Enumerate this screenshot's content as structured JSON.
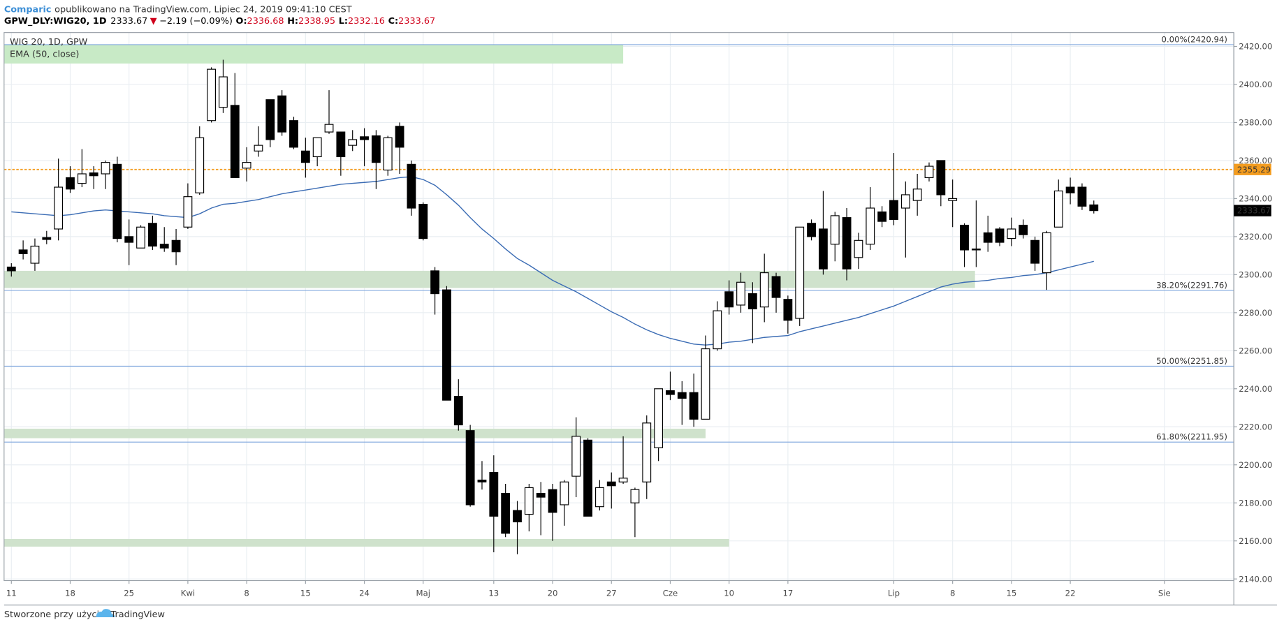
{
  "header": {
    "publisher": "Comparic",
    "published": "opublikowano na TradingView.com, Lipiec 24, 2019 09:41:10 CEST",
    "symbol": "GPW_DLY:WIG20, 1D",
    "arrow": "▼",
    "change": "−2.19 (−0.09%)",
    "o": "O:",
    "h": "H:",
    "l": "L:",
    "c": "C:"
  },
  "footer": {
    "text": "Stworzone przy użyciu",
    "brand": "TradingView"
  },
  "chart_data": {
    "type": "candlestick",
    "series": [
      {
        "name": "WIG 20, 1D, GPW",
        "up_color": "#ffffff",
        "down_color": "#000000",
        "x": [
          0,
          1,
          2,
          3,
          4,
          5,
          6,
          7,
          8,
          9,
          10,
          11,
          12,
          13,
          14,
          15,
          16,
          17,
          18,
          19,
          20,
          21,
          22,
          23,
          24,
          25,
          26,
          27,
          28,
          29,
          30,
          31,
          32,
          33,
          34,
          35,
          36,
          37,
          38,
          39,
          40,
          41,
          42,
          43,
          44,
          45,
          46,
          47,
          48,
          49,
          50,
          51,
          52,
          53,
          54,
          55,
          56,
          57,
          58,
          59,
          60,
          61,
          62,
          63,
          64,
          65,
          66,
          67,
          68,
          69,
          70,
          71,
          72,
          73,
          74,
          75,
          76,
          77,
          78,
          79,
          80,
          81,
          82,
          83,
          84,
          85,
          86,
          87,
          88,
          89,
          90,
          91,
          92
        ],
        "open": [
          2304,
          2313,
          2306,
          2319.5,
          2324,
          2351,
          2348,
          2353.5,
          2353,
          2358,
          2320,
          2314,
          2327,
          2316,
          2318,
          2325,
          2343,
          2381,
          2388,
          2389,
          2356,
          2365,
          2392,
          2394,
          2381,
          2365,
          2362,
          2375,
          2375,
          2368,
          2372.5,
          2373,
          2355,
          2378,
          2358,
          2337,
          2302,
          2292,
          2236,
          2218,
          2192,
          2196,
          2185,
          2176,
          2174,
          2185,
          2187,
          2179,
          2194,
          2213,
          2178,
          2191,
          2191,
          2180,
          2191,
          2209,
          2239,
          2238,
          2238,
          2224,
          2261,
          2291,
          2284,
          2290,
          2283,
          2299,
          2287,
          2277,
          2327,
          2324,
          2316,
          2330,
          2309,
          2316,
          2333,
          2339,
          2335,
          2339,
          2351,
          2360,
          2339,
          2326,
          2313.5,
          2322,
          2324,
          2319,
          2326,
          2318,
          2301,
          2325,
          2346,
          2346,
          2336.68
        ],
        "high": [
          2306,
          2318,
          2319,
          2323,
          2361,
          2357,
          2366,
          2357,
          2360,
          2362,
          2329,
          2326,
          2331,
          2325,
          2324,
          2348,
          2378,
          2409,
          2413,
          2406,
          2367,
          2378,
          2392,
          2397,
          2383,
          2372,
          2372,
          2397,
          2375,
          2376,
          2377,
          2376,
          2373,
          2380,
          2360,
          2338,
          2304,
          2294,
          2245,
          2221,
          2202,
          2205,
          2190,
          2181,
          2190,
          2191,
          2190,
          2192,
          2225,
          2214,
          2192,
          2196,
          2215,
          2188,
          2226,
          2240,
          2249,
          2244,
          2248,
          2268,
          2286,
          2297,
          2301,
          2296,
          2311,
          2301,
          2289,
          2325,
          2329,
          2344,
          2333,
          2335,
          2322,
          2346,
          2336,
          2364,
          2349,
          2353,
          2359,
          2360,
          2350,
          2327,
          2339,
          2331,
          2325,
          2330,
          2329,
          2320,
          2323,
          2350,
          2351,
          2348,
          2338.95
        ],
        "low": [
          2299,
          2308,
          2302,
          2316,
          2318,
          2343,
          2346,
          2345,
          2345,
          2317,
          2305,
          2314,
          2313,
          2312,
          2305,
          2324,
          2342,
          2380,
          2385,
          2351,
          2349,
          2362,
          2367,
          2373,
          2366,
          2351,
          2357,
          2374,
          2352,
          2365,
          2357,
          2345,
          2352,
          2353,
          2331,
          2318,
          2279,
          2234,
          2218,
          2178,
          2187,
          2154,
          2162,
          2153,
          2165,
          2163,
          2160,
          2168,
          2183,
          2173,
          2176,
          2177,
          2190,
          2162,
          2182,
          2202,
          2234,
          2221,
          2220,
          2224,
          2260,
          2279,
          2280,
          2264,
          2275,
          2280,
          2269,
          2273,
          2318,
          2300,
          2307,
          2297,
          2303,
          2313,
          2325,
          2326,
          2309,
          2331,
          2349,
          2336,
          2325,
          2304,
          2304,
          2312,
          2315,
          2315,
          2319,
          2302,
          2292,
          2325,
          2337,
          2334,
          2332.16
        ],
        "close": [
          2302,
          2311,
          2315,
          2318.5,
          2346,
          2345,
          2353,
          2352,
          2359,
          2319,
          2317,
          2325,
          2315,
          2314,
          2312,
          2341,
          2372,
          2408,
          2404,
          2351,
          2359,
          2368,
          2371,
          2375,
          2367,
          2359,
          2372,
          2379,
          2362,
          2371,
          2371,
          2359,
          2372,
          2367,
          2335,
          2319,
          2290,
          2234,
          2221,
          2179,
          2191,
          2173,
          2164,
          2170,
          2188,
          2183,
          2175,
          2191,
          2215,
          2173,
          2188,
          2189,
          2193,
          2187,
          2222,
          2240,
          2237,
          2235,
          2224,
          2261,
          2281,
          2283,
          2296,
          2282,
          2301,
          2288,
          2276,
          2325,
          2320,
          2303,
          2331,
          2303,
          2318,
          2335,
          2328,
          2329,
          2342,
          2345,
          2357,
          2342,
          2340,
          2313,
          2313,
          2317,
          2317,
          2324,
          2321,
          2306,
          2322,
          2344,
          2343,
          2336,
          2333.67
        ]
      }
    ],
    "ema": {
      "name": "EMA (50, close)",
      "color": "#3b6cb4",
      "values": [
        2333,
        2332.5,
        2332,
        2331.5,
        2331,
        2331.5,
        2332.5,
        2333.5,
        2334,
        2333.5,
        2333,
        2332.5,
        2332,
        2331,
        2330.5,
        2330,
        2332,
        2335,
        2337,
        2337.5,
        2338.5,
        2339.5,
        2341,
        2342.5,
        2343.5,
        2344.5,
        2345.5,
        2346.5,
        2347.5,
        2348,
        2348.5,
        2349,
        2350,
        2351,
        2351.5,
        2350,
        2347,
        2342,
        2336.5,
        2330,
        2324,
        2319,
        2313.5,
        2308.5,
        2305,
        2301,
        2297,
        2294,
        2291,
        2287.5,
        2284,
        2280.5,
        2277.5,
        2274,
        2271,
        2268.5,
        2266.5,
        2265,
        2263.5,
        2263,
        2263.5,
        2264.5,
        2265,
        2266,
        2267,
        2267.5,
        2268,
        2270,
        2271.5,
        2273,
        2274.5,
        2276,
        2277.5,
        2279.5,
        2281.5,
        2283.5,
        2286,
        2288.5,
        2291,
        2293.5,
        2295,
        2296,
        2296.5,
        2297,
        2298,
        2298.5,
        2299.5,
        2300,
        2301,
        2302.5,
        2304,
        2305.5,
        2307
      ]
    },
    "fib_levels": [
      {
        "value": 2420.94,
        "label": "0.00%(2420.94)"
      },
      {
        "value": 2291.76,
        "label": "38.20%(2291.76)"
      },
      {
        "value": 2251.85,
        "label": "50.00%(2251.85)"
      },
      {
        "value": 2211.95,
        "label": "61.80%(2211.95)"
      }
    ],
    "fib_color": "#7fa6dd",
    "price_line": {
      "value": 2355.29,
      "color": "#f39c1f"
    },
    "zones": [
      {
        "low": 2411,
        "high": 2421,
        "x_end": 52,
        "color": "#c8eac6"
      },
      {
        "low": 2293,
        "high": 2302,
        "x_end": 81.9,
        "color": "#cfe2cc"
      },
      {
        "low": 2214,
        "high": 2219,
        "x_end": 59,
        "color": "#cfe2cc"
      },
      {
        "low": 2157,
        "high": 2161,
        "x_end": 61,
        "color": "#cfe2cc"
      }
    ],
    "xlim": [
      -0.62,
      103.9
    ],
    "ylim": [
      2139.14,
      2427.28
    ],
    "xticks": [
      {
        "value": 0,
        "label": "11"
      },
      {
        "value": 5,
        "label": "18"
      },
      {
        "value": 10,
        "label": "25"
      },
      {
        "value": 15,
        "label": "Kwi"
      },
      {
        "value": 20,
        "label": "8"
      },
      {
        "value": 25,
        "label": "15"
      },
      {
        "value": 30,
        "label": "24"
      },
      {
        "value": 35,
        "label": "Maj"
      },
      {
        "value": 41,
        "label": "13"
      },
      {
        "value": 46,
        "label": "20"
      },
      {
        "value": 51,
        "label": "27"
      },
      {
        "value": 56,
        "label": "Cze"
      },
      {
        "value": 61,
        "label": "10"
      },
      {
        "value": 66,
        "label": "17"
      },
      {
        "value": 75,
        "label": "Lip"
      },
      {
        "value": 80,
        "label": "8"
      },
      {
        "value": 85,
        "label": "15"
      },
      {
        "value": 90,
        "label": "22"
      },
      {
        "value": 98,
        "label": "Sie"
      }
    ],
    "yticks": [
      {
        "value": 2140,
        "label": "2140.00"
      },
      {
        "value": 2160,
        "label": "2160.00"
      },
      {
        "value": 2180,
        "label": "2180.00"
      },
      {
        "value": 2200,
        "label": "2200.00"
      },
      {
        "value": 2220,
        "label": "2220.00"
      },
      {
        "value": 2240,
        "label": "2240.00"
      },
      {
        "value": 2260,
        "label": "2260.00"
      },
      {
        "value": 2280,
        "label": "2280.00"
      },
      {
        "value": 2300,
        "label": "2300.00"
      },
      {
        "value": 2320,
        "label": "2320.00"
      },
      {
        "value": 2340,
        "label": "2340.00"
      },
      {
        "value": 2360,
        "label": "2360.00"
      },
      {
        "value": 2380,
        "label": "2380.00"
      },
      {
        "value": 2400,
        "label": "2400.00"
      },
      {
        "value": 2420,
        "label": "2420.00"
      }
    ],
    "grid": true
  }
}
